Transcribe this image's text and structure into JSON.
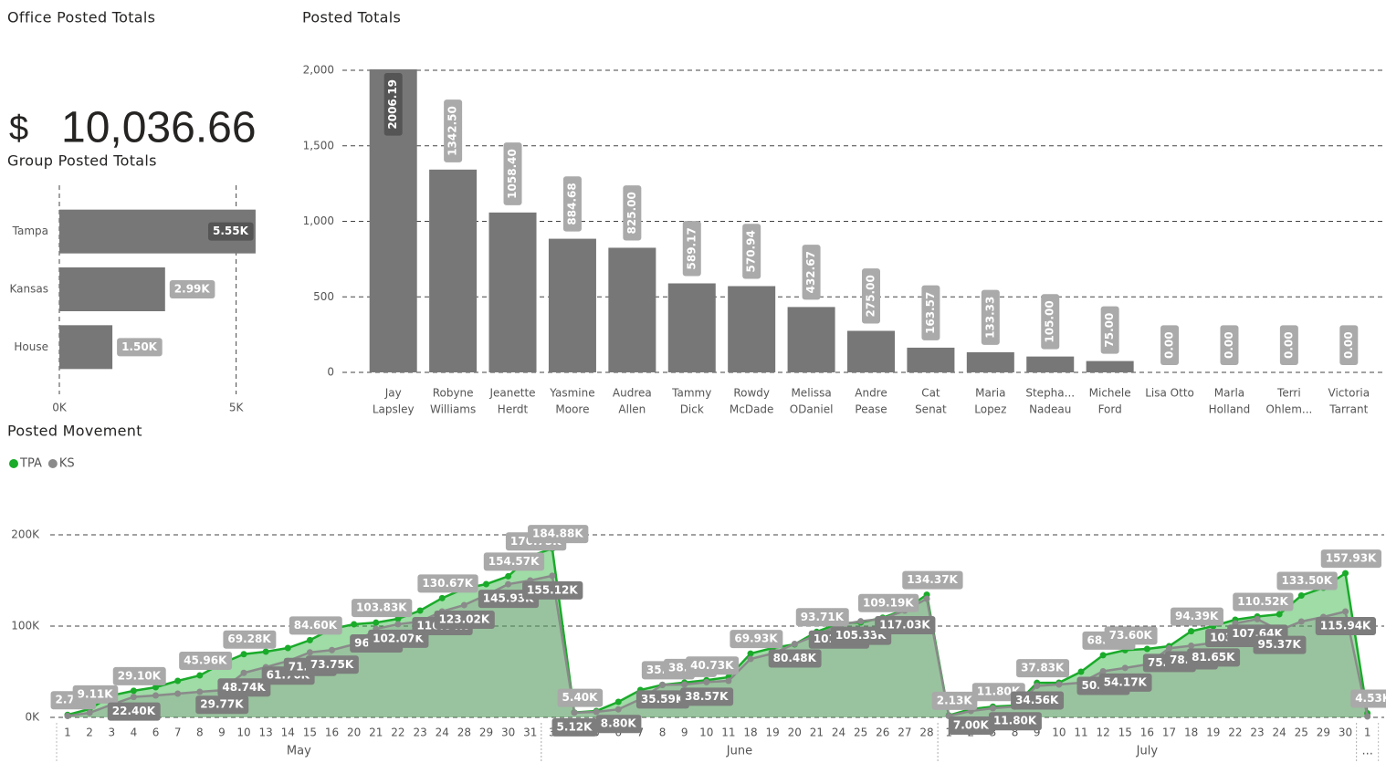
{
  "office_card": {
    "title": "Office Posted Totals",
    "currency": "$",
    "value": "10,036.66"
  },
  "chart_data": [
    {
      "type": "hbar",
      "title": "Group Posted Totals",
      "categories": [
        "Tampa",
        "Kansas",
        "House"
      ],
      "values": [
        5550,
        2990,
        1500
      ],
      "value_labels": [
        "5.55K",
        "2.99K",
        "1.50K"
      ],
      "color": "#777777",
      "xlim": [
        0,
        5500
      ],
      "xticks": [
        {
          "value": 0,
          "label": "0K"
        },
        {
          "value": 5000,
          "label": "5K"
        }
      ],
      "grid": true
    },
    {
      "type": "bar",
      "title": "Posted Totals",
      "categories": [
        [
          "Jay",
          "Lapsley"
        ],
        [
          "Robyne",
          "Williams"
        ],
        [
          "Jeanette",
          "Herdt"
        ],
        [
          "Yasmine",
          "Moore"
        ],
        [
          "Audrea",
          "Allen"
        ],
        [
          "Tammy",
          "Dick"
        ],
        [
          "Rowdy",
          "McDade"
        ],
        [
          "Melissa",
          "ODaniel"
        ],
        [
          "Andre",
          "Pease"
        ],
        [
          "Cat",
          "Senat"
        ],
        [
          "Maria",
          "Lopez"
        ],
        [
          "Stepha...",
          "Nadeau"
        ],
        [
          "Michele",
          "Ford"
        ],
        [
          "Lisa Otto"
        ],
        [
          "Marla",
          "Holland"
        ],
        [
          "Terri",
          "Ohlem..."
        ],
        [
          "Victoria",
          "Tarrant"
        ]
      ],
      "values": [
        2006.19,
        1342.5,
        1058.4,
        884.68,
        825.0,
        589.17,
        570.94,
        432.67,
        275.0,
        163.57,
        133.33,
        105.0,
        75.0,
        0,
        0,
        0,
        0
      ],
      "value_labels": [
        "2006.19",
        "1342.50",
        "1058.40",
        "884.68",
        "825.00",
        "589.17",
        "570.94",
        "432.67",
        "275.00",
        "163.57",
        "133.33",
        "105.00",
        "75.00",
        "0.00",
        "0.00",
        "0.00",
        "0.00"
      ],
      "color": "#777777",
      "ylim": [
        0,
        2000
      ],
      "yticks": [
        0,
        500,
        {
          "value": 1000,
          "label": "1,000"
        },
        {
          "value": 1500,
          "label": "1,500"
        },
        {
          "value": 2000,
          "label": "2,000"
        }
      ],
      "grid": true
    },
    {
      "type": "line",
      "title": "Posted Movement",
      "legend": "top-left",
      "area": true,
      "grid": true,
      "categories": [
        "1",
        "2",
        "3",
        "4",
        "6",
        "7",
        "8",
        "9",
        "10",
        "13",
        "14",
        "15",
        "16",
        "20",
        "21",
        "22",
        "23",
        "24",
        "28",
        "29",
        "30",
        "31",
        "3",
        "4",
        "5",
        "6",
        "7",
        "8",
        "9",
        "10",
        "11",
        "18",
        "19",
        "20",
        "21",
        "24",
        "25",
        "26",
        "27",
        "28",
        "1",
        "2",
        "3",
        "8",
        "9",
        "10",
        "11",
        "12",
        "15",
        "16",
        "17",
        "18",
        "19",
        "22",
        "23",
        "24",
        "25",
        "29",
        "30",
        "1"
      ],
      "months": [
        "May",
        "June",
        "July",
        "..."
      ],
      "ylim": [
        0,
        200000
      ],
      "yticks": [
        {
          "value": 0,
          "label": "0K"
        },
        {
          "value": 100000,
          "label": "100K"
        },
        {
          "value": 200000,
          "label": "200K"
        }
      ],
      "series": [
        {
          "name": "TPA",
          "color": "#1aab2a",
          "values": [
            2770,
            9110,
            24000,
            29100,
            33000,
            40000,
            45960,
            59000,
            69280,
            72000,
            76000,
            84600,
            97000,
            102000,
            103830,
            108000,
            117000,
            130670,
            141000,
            146000,
            154570,
            176750,
            184880,
            5400,
            7000,
            17000,
            30000,
            35660,
            38150,
            40730,
            44000,
            69930,
            76000,
            80000,
            93710,
            103000,
            104000,
            109190,
            118000,
            134370,
            2130,
            9000,
            11800,
            13000,
            37830,
            38000,
            50000,
            68110,
            73600,
            75000,
            78000,
            94390,
            100000,
            107000,
            110520,
            113000,
            133500,
            142000,
            157930,
            4530
          ],
          "value_labels": [
            "2.77K",
            "9.11K",
            null,
            "29.10K",
            null,
            null,
            "45.96K",
            null,
            "69.28K",
            null,
            null,
            "84.60K",
            null,
            null,
            "103.83K",
            null,
            null,
            "130.67K",
            null,
            null,
            "154.57K",
            "176.75K",
            "184.88K",
            "5.40K",
            null,
            null,
            null,
            "35.66K",
            "38.15K",
            "40.73K",
            null,
            "69.93K",
            null,
            null,
            "93.71K",
            null,
            null,
            "109.19K",
            null,
            "134.37K",
            "2.13K",
            null,
            "11.80K",
            null,
            "37.83K",
            null,
            null,
            "68.11K",
            "73.60K",
            null,
            null,
            "94.39K",
            null,
            null,
            "110.52K",
            null,
            "133.50K",
            null,
            "157.93K",
            "4.53K"
          ]
        },
        {
          "name": "KS",
          "color": "#8a8a8a",
          "values": [
            1500,
            5000,
            14000,
            22400,
            24000,
            26000,
            28000,
            29770,
            48740,
            55000,
            61760,
            71210,
            73750,
            80000,
            96940,
            102070,
            105000,
            116040,
            123020,
            134000,
            145930,
            150000,
            155120,
            5120,
            6000,
            8800,
            20000,
            35590,
            36000,
            38570,
            40000,
            64000,
            70000,
            80480,
            90000,
            101260,
            105330,
            108000,
            117030,
            130000,
            1500,
            7000,
            10000,
            11800,
            34560,
            36000,
            38000,
            50500,
            54170,
            58000,
            75660,
            78530,
            81650,
            103020,
            107640,
            95370,
            105000,
            110000,
            115940,
            1000
          ],
          "value_labels": [
            null,
            null,
            null,
            "22.40K",
            null,
            null,
            null,
            "29.77K",
            "48.74K",
            null,
            "61.76K",
            "71.21K",
            "73.75K",
            null,
            "96.94K",
            "102.07K",
            null,
            "116.04K",
            "123.02K",
            null,
            "145.93K",
            null,
            "155.12K",
            "5.12K",
            null,
            "8.80K",
            null,
            "35.59K",
            null,
            "38.57K",
            null,
            null,
            null,
            "80.48K",
            null,
            "101.26K",
            "105.33K",
            null,
            "117.03K",
            null,
            null,
            "7.00K",
            null,
            "11.80K",
            "34.56K",
            null,
            null,
            "50.50K",
            "54.17K",
            null,
            "75.66K",
            "78.53K",
            "81.65K",
            "103.02K",
            "107.64K",
            "95.37K",
            null,
            null,
            "115.94K",
            null
          ]
        }
      ]
    }
  ]
}
